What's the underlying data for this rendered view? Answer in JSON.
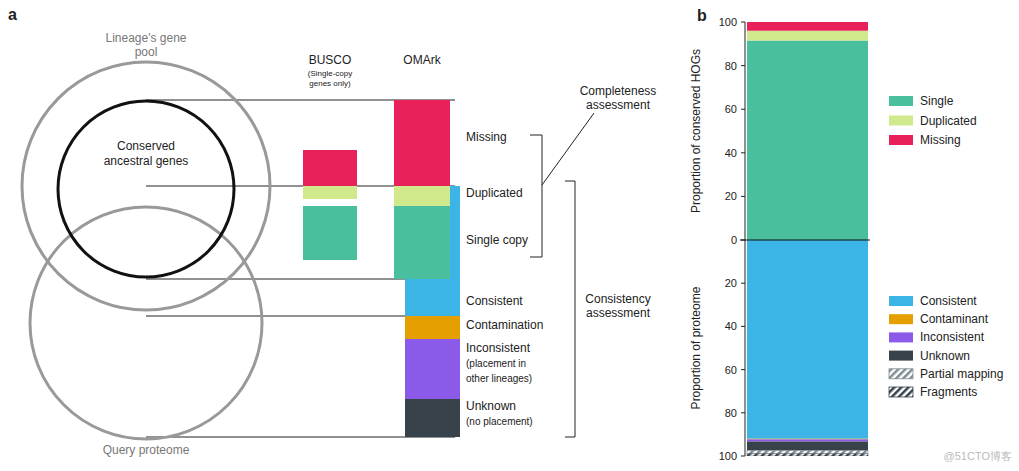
{
  "diagram": {
    "panel_label": "a",
    "circles": {
      "gene_pool": [
        "Lineage's gene",
        "pool"
      ],
      "conserved": [
        "Conserved",
        "ancestral genes"
      ],
      "proteome": [
        "Query proteome"
      ]
    },
    "columns": [
      {
        "title": "BUSCO",
        "subtitle": [
          "(Single-copy",
          "genes only)"
        ]
      },
      {
        "title": "OMArk"
      }
    ],
    "categories": [
      {
        "label": [
          "Missing"
        ],
        "color": "#e8215a"
      },
      {
        "label": [
          "Duplicated"
        ],
        "color": "#cfe98c"
      },
      {
        "label": [
          "Single copy"
        ],
        "color": "#49bf9d"
      },
      {
        "label": [
          "Consistent"
        ],
        "color": "#3cb4e6"
      },
      {
        "label": [
          "Contamination"
        ],
        "color": "#e69f00"
      },
      {
        "label": [
          "Inconsistent",
          "(placement in",
          "other lineages)"
        ],
        "color": "#8c5ae8"
      },
      {
        "label": [
          "Unknown",
          "(no placement)"
        ],
        "color": "#37424b"
      }
    ],
    "brackets": [
      {
        "label": [
          "Completeness",
          "assessment"
        ]
      },
      {
        "label": [
          "Consistency",
          "assessment"
        ]
      }
    ]
  },
  "panel_b_label": "b",
  "chart_data": [
    {
      "type": "bar",
      "stacked": true,
      "y_label": "Proportion of conserved HOGs",
      "ylim": [
        0,
        100
      ],
      "yticks": [
        0,
        20,
        40,
        60,
        80,
        100
      ],
      "categories": [
        null
      ],
      "legend": "right",
      "series": [
        {
          "name": "Single",
          "color": "#49bf9d",
          "values": [
            91.5
          ]
        },
        {
          "name": "Duplicated",
          "color": "#cfe98c",
          "values": [
            4.5
          ]
        },
        {
          "name": "Missing",
          "color": "#e8215a",
          "values": [
            4
          ]
        }
      ]
    },
    {
      "type": "bar",
      "stacked": true,
      "y_label": "Proportion of proteome",
      "ylim": [
        100,
        0
      ],
      "yticks": [
        20,
        40,
        60,
        80,
        100
      ],
      "categories": [
        null
      ],
      "legend": "right",
      "series": [
        {
          "name": "Consistent",
          "color": "#3cb4e6",
          "values": [
            92
          ]
        },
        {
          "name": "Contaminant",
          "color": "#e69f00",
          "values": [
            0.3
          ]
        },
        {
          "name": "Inconsistent",
          "color": "#8c5ae8",
          "values": [
            1
          ]
        },
        {
          "name": "Unknown",
          "color": "#37424b",
          "values": [
            4.2
          ]
        },
        {
          "name": "Partial mapping",
          "color": "#7f8c93",
          "marker": "hatch",
          "values": [
            1.5
          ]
        },
        {
          "name": "Fragments",
          "color": "#37424b",
          "marker": "hatch",
          "values": [
            1
          ]
        }
      ]
    }
  ],
  "watermark": "@51CTO博客"
}
